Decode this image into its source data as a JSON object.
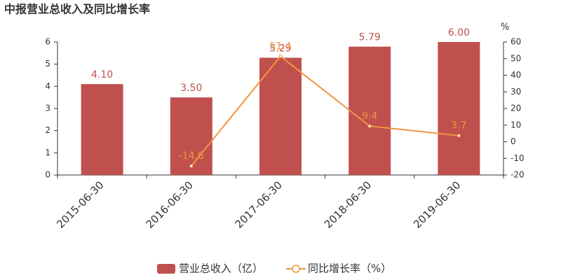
{
  "chart_data": {
    "type": "bar",
    "title": "中报营业总收入及同比增长率",
    "categories": [
      "2015-06-30",
      "2016-06-30",
      "2017-06-30",
      "2018-06-30",
      "2019-06-30"
    ],
    "series": [
      {
        "name": "营业总收入（亿）",
        "type": "bar",
        "color": "#c0504d",
        "values": [
          4.1,
          3.5,
          5.29,
          5.79,
          6.0
        ],
        "value_labels": [
          "4.10",
          "3.50",
          "5.29",
          "5.79",
          "6.00"
        ]
      },
      {
        "name": "同比增长率（%）",
        "type": "line",
        "axis": "y2",
        "color": "#f0953f",
        "values": [
          null,
          -14.6,
          51.4,
          9.4,
          3.7
        ]
      }
    ],
    "ylim": [
      0,
      6
    ],
    "yticks": [
      0,
      1,
      2,
      3,
      4,
      5,
      6
    ],
    "y2label": "%",
    "y2lim": [
      -20,
      60
    ],
    "y2ticks": [
      -20,
      -10,
      0,
      10,
      20,
      30,
      40,
      50,
      60
    ],
    "grid": false,
    "legend": "bottom"
  }
}
